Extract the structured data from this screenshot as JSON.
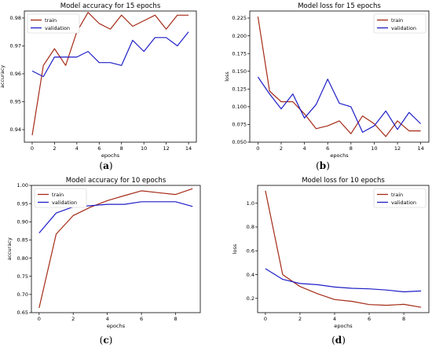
{
  "panel_labels": [
    "(a)",
    "(b)",
    "(c)",
    "(d)"
  ],
  "colors": {
    "train": "#a52a16",
    "validation": "#1e1ec8",
    "axis": "#000000"
  },
  "chart_data": [
    {
      "id": "a",
      "type": "line",
      "title": "Model accuracy for 15 epochs",
      "xlabel": "epochs",
      "ylabel": "accuracy",
      "legend": "top-left",
      "grid": false,
      "xlim": [
        -0.7,
        14.7
      ],
      "ylim": [
        0.9355,
        0.9825
      ],
      "xticks": [
        0,
        2,
        4,
        6,
        8,
        10,
        12,
        14
      ],
      "yticks": [
        0.94,
        0.95,
        0.96,
        0.97,
        0.98
      ],
      "ytick_labels": [
        "0.94",
        "0.95",
        "0.96",
        "0.97",
        "0.98"
      ],
      "x": [
        0,
        1,
        2,
        3,
        4,
        5,
        6,
        7,
        8,
        9,
        10,
        11,
        12,
        13,
        14
      ],
      "series": [
        {
          "name": "train",
          "values": [
            0.938,
            0.963,
            0.969,
            0.963,
            0.975,
            0.982,
            0.978,
            0.976,
            0.981,
            0.977,
            0.979,
            0.981,
            0.976,
            0.981,
            0.981
          ]
        },
        {
          "name": "validation",
          "values": [
            0.961,
            0.959,
            0.966,
            0.966,
            0.966,
            0.968,
            0.964,
            0.964,
            0.963,
            0.972,
            0.968,
            0.973,
            0.973,
            0.97,
            0.975
          ]
        }
      ]
    },
    {
      "id": "b",
      "type": "line",
      "title": "Model loss for 15 epochs",
      "xlabel": "epochs",
      "ylabel": "loss",
      "legend": "top-right",
      "grid": false,
      "xlim": [
        -0.7,
        14.7
      ],
      "ylim": [
        0.05,
        0.235
      ],
      "xticks": [
        0,
        2,
        4,
        6,
        8,
        10,
        12,
        14
      ],
      "yticks": [
        0.05,
        0.075,
        0.1,
        0.125,
        0.15,
        0.175,
        0.2,
        0.225
      ],
      "ytick_labels": [
        "0.050",
        "0.075",
        "0.100",
        "0.125",
        "0.150",
        "0.175",
        "0.200",
        "0.225"
      ],
      "x": [
        0,
        1,
        2,
        3,
        4,
        5,
        6,
        7,
        8,
        9,
        10,
        11,
        12,
        13,
        14
      ],
      "series": [
        {
          "name": "train",
          "values": [
            0.227,
            0.122,
            0.107,
            0.107,
            0.09,
            0.069,
            0.073,
            0.08,
            0.062,
            0.087,
            0.076,
            0.058,
            0.08,
            0.066,
            0.066
          ]
        },
        {
          "name": "validation",
          "values": [
            0.142,
            0.118,
            0.097,
            0.118,
            0.084,
            0.103,
            0.139,
            0.105,
            0.1,
            0.064,
            0.073,
            0.094,
            0.068,
            0.092,
            0.076
          ]
        }
      ]
    },
    {
      "id": "c",
      "type": "line",
      "title": "Model accuracy for 10 epochs",
      "xlabel": "epochs",
      "ylabel": "accuracy",
      "legend": "top-left",
      "grid": false,
      "xlim": [
        -0.45,
        9.45
      ],
      "ylim": [
        0.65,
        1.0
      ],
      "xticks": [
        0,
        2,
        4,
        6,
        8
      ],
      "yticks": [
        0.65,
        0.7,
        0.75,
        0.8,
        0.85,
        0.9,
        0.95,
        1.0
      ],
      "ytick_labels": [
        "0.65",
        "0.70",
        "0.75",
        "0.80",
        "0.85",
        "0.90",
        "0.95",
        "1.00"
      ],
      "x": [
        0,
        1,
        2,
        3,
        4,
        5,
        6,
        7,
        8,
        9
      ],
      "series": [
        {
          "name": "train",
          "values": [
            0.663,
            0.866,
            0.917,
            0.94,
            0.958,
            0.972,
            0.985,
            0.98,
            0.975,
            0.991
          ]
        },
        {
          "name": "validation",
          "values": [
            0.869,
            0.924,
            0.941,
            0.944,
            0.948,
            0.948,
            0.955,
            0.955,
            0.955,
            0.942
          ]
        }
      ]
    },
    {
      "id": "d",
      "type": "line",
      "title": "Model loss for 10 epochs",
      "xlabel": "epochs",
      "ylabel": "loss",
      "legend": "top-right",
      "grid": false,
      "xlim": [
        -0.45,
        9.45
      ],
      "ylim": [
        0.08,
        1.15
      ],
      "xticks": [
        0,
        2,
        4,
        6,
        8
      ],
      "yticks": [
        0.2,
        0.4,
        0.6,
        0.8,
        1.0
      ],
      "ytick_labels": [
        "0.2",
        "0.4",
        "0.6",
        "0.8",
        "1.0"
      ],
      "x": [
        0,
        1,
        2,
        3,
        4,
        5,
        6,
        7,
        8,
        9
      ],
      "series": [
        {
          "name": "train",
          "values": [
            1.105,
            0.4,
            0.3,
            0.24,
            0.19,
            0.175,
            0.148,
            0.142,
            0.15,
            0.125
          ]
        },
        {
          "name": "validation",
          "values": [
            0.45,
            0.36,
            0.325,
            0.315,
            0.295,
            0.285,
            0.28,
            0.27,
            0.255,
            0.262
          ]
        }
      ]
    }
  ]
}
